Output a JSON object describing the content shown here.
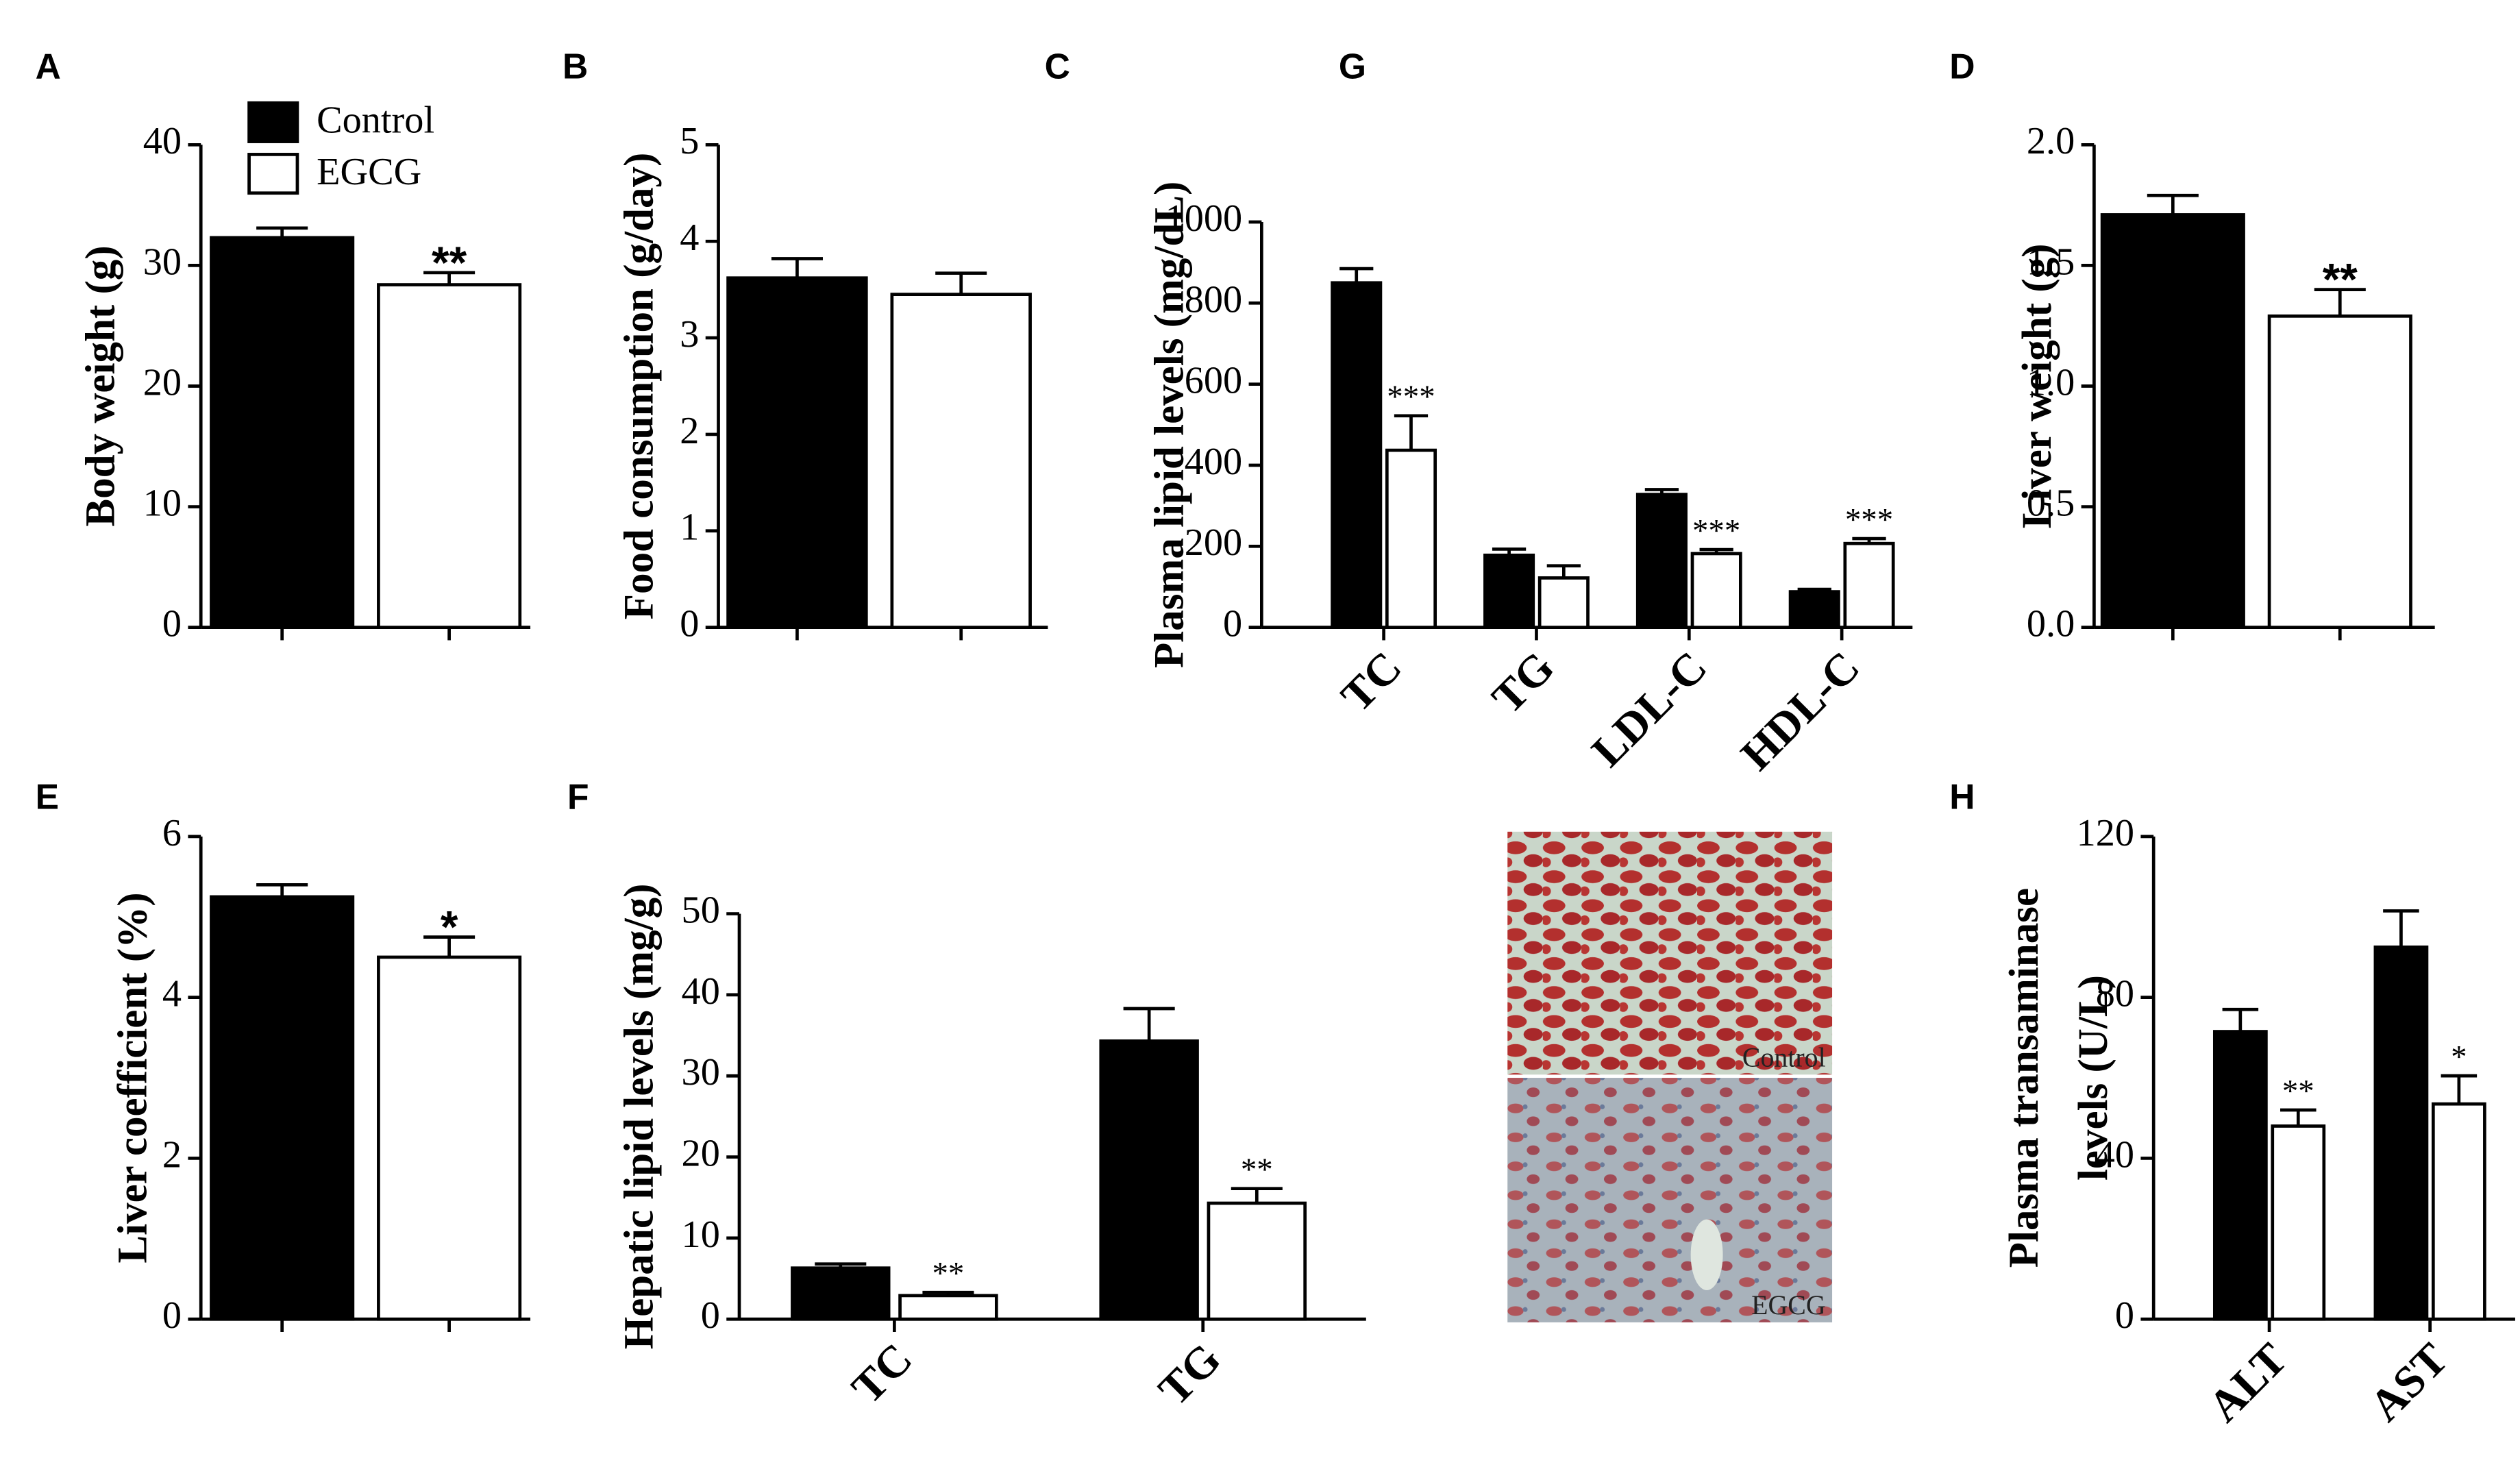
{
  "chart_data": [
    {
      "type": "bar",
      "label": "A",
      "ylabel": "Body weight (g)",
      "categories": [
        null
      ],
      "series": [
        {
          "name": "Control",
          "color": "#000000",
          "values": [
            32.3
          ],
          "errors": [
            0.8
          ],
          "annotations": [
            null
          ]
        },
        {
          "name": "EGCG",
          "color": "#ffffff",
          "values": [
            28.4
          ],
          "errors": [
            1.0
          ],
          "annotations": [
            "**"
          ]
        }
      ],
      "ylim": [
        0,
        40
      ],
      "yticks": [
        0,
        10,
        20,
        30,
        40
      ]
    },
    {
      "type": "bar",
      "label": "B",
      "ylabel": "Food consumption (g/day)",
      "categories": [
        null
      ],
      "series": [
        {
          "color": "#000000",
          "values": [
            3.62
          ],
          "errors": [
            0.2
          ],
          "annotations": [
            null
          ]
        },
        {
          "color": "#ffffff",
          "values": [
            3.45
          ],
          "errors": [
            0.22
          ],
          "annotations": [
            null
          ]
        }
      ],
      "ylim": [
        0,
        5
      ],
      "yticks": [
        0,
        1,
        2,
        3,
        4,
        5
      ]
    },
    {
      "type": "bar",
      "label": "C",
      "ylabel": "Plasma lipid levels (mg/dL)",
      "categories": [
        "TC",
        "TG",
        "LDL-C",
        "HDL-C"
      ],
      "series": [
        {
          "color": "#000000",
          "values": [
            850,
            178,
            328,
            88
          ],
          "errors": [
            35,
            15,
            12,
            6
          ],
          "annotations": [
            null,
            null,
            null,
            null
          ]
        },
        {
          "color": "#ffffff",
          "values": [
            437,
            122,
            182,
            207
          ],
          "errors": [
            85,
            30,
            10,
            12
          ],
          "annotations": [
            "***",
            null,
            "***",
            "***"
          ]
        }
      ],
      "ylim": [
        0,
        1000
      ],
      "yticks": [
        0,
        200,
        400,
        600,
        800,
        1000
      ]
    },
    {
      "type": "bar",
      "label": "D",
      "ylabel": "Liver weight (g)",
      "categories": [
        null
      ],
      "series": [
        {
          "color": "#000000",
          "values": [
            1.71
          ],
          "errors": [
            0.08
          ],
          "annotations": [
            null
          ]
        },
        {
          "color": "#ffffff",
          "values": [
            1.29
          ],
          "errors": [
            0.11
          ],
          "annotations": [
            "**"
          ]
        }
      ],
      "ylim": [
        0,
        2
      ],
      "yticks": [
        {
          "value": 0,
          "label": "0.0"
        },
        0.5,
        {
          "value": 1,
          "label": "1.0"
        },
        1.5,
        {
          "value": 2,
          "label": "2.0"
        }
      ]
    },
    {
      "type": "bar",
      "label": "E",
      "ylabel": "Liver coefficient (%)",
      "categories": [
        null
      ],
      "series": [
        {
          "color": "#000000",
          "values": [
            5.25
          ],
          "errors": [
            0.15
          ],
          "annotations": [
            null
          ]
        },
        {
          "color": "#ffffff",
          "values": [
            4.5
          ],
          "errors": [
            0.25
          ],
          "annotations": [
            "*"
          ]
        }
      ],
      "ylim": [
        0,
        6
      ],
      "yticks": [
        0,
        2,
        4,
        6
      ]
    },
    {
      "type": "bar",
      "label": "F",
      "ylabel": "Hepatic lipid levels (mg/g)",
      "categories": [
        "TC",
        "TG"
      ],
      "series": [
        {
          "color": "#000000",
          "values": [
            6.3,
            34.3
          ],
          "errors": [
            0.5,
            4
          ],
          "annotations": [
            null,
            null
          ]
        },
        {
          "color": "#ffffff",
          "values": [
            2.9,
            14.3
          ],
          "errors": [
            0.4,
            1.8
          ],
          "annotations": [
            "**",
            "**"
          ]
        }
      ],
      "ylim": [
        0,
        50
      ],
      "yticks": [
        0,
        10,
        20,
        30,
        40,
        50
      ]
    },
    {
      "type": "bar",
      "label": "H",
      "ylabel": [
        "Plasma transaminase",
        "levels (U/L)"
      ],
      "categories": [
        "ALT",
        "AST"
      ],
      "series": [
        {
          "color": "#000000",
          "values": [
            71.5,
            92.5
          ],
          "errors": [
            5.5,
            9
          ],
          "annotations": [
            null,
            null
          ]
        },
        {
          "color": "#ffffff",
          "values": [
            48,
            53.5
          ],
          "errors": [
            4,
            7
          ],
          "annotations": [
            "**",
            "*"
          ]
        }
      ],
      "ylim": [
        0,
        120
      ],
      "yticks": [
        0,
        40,
        80,
        120
      ]
    }
  ],
  "image_panel": {
    "label": "G",
    "captions": [
      "Control",
      "EGCG"
    ]
  }
}
